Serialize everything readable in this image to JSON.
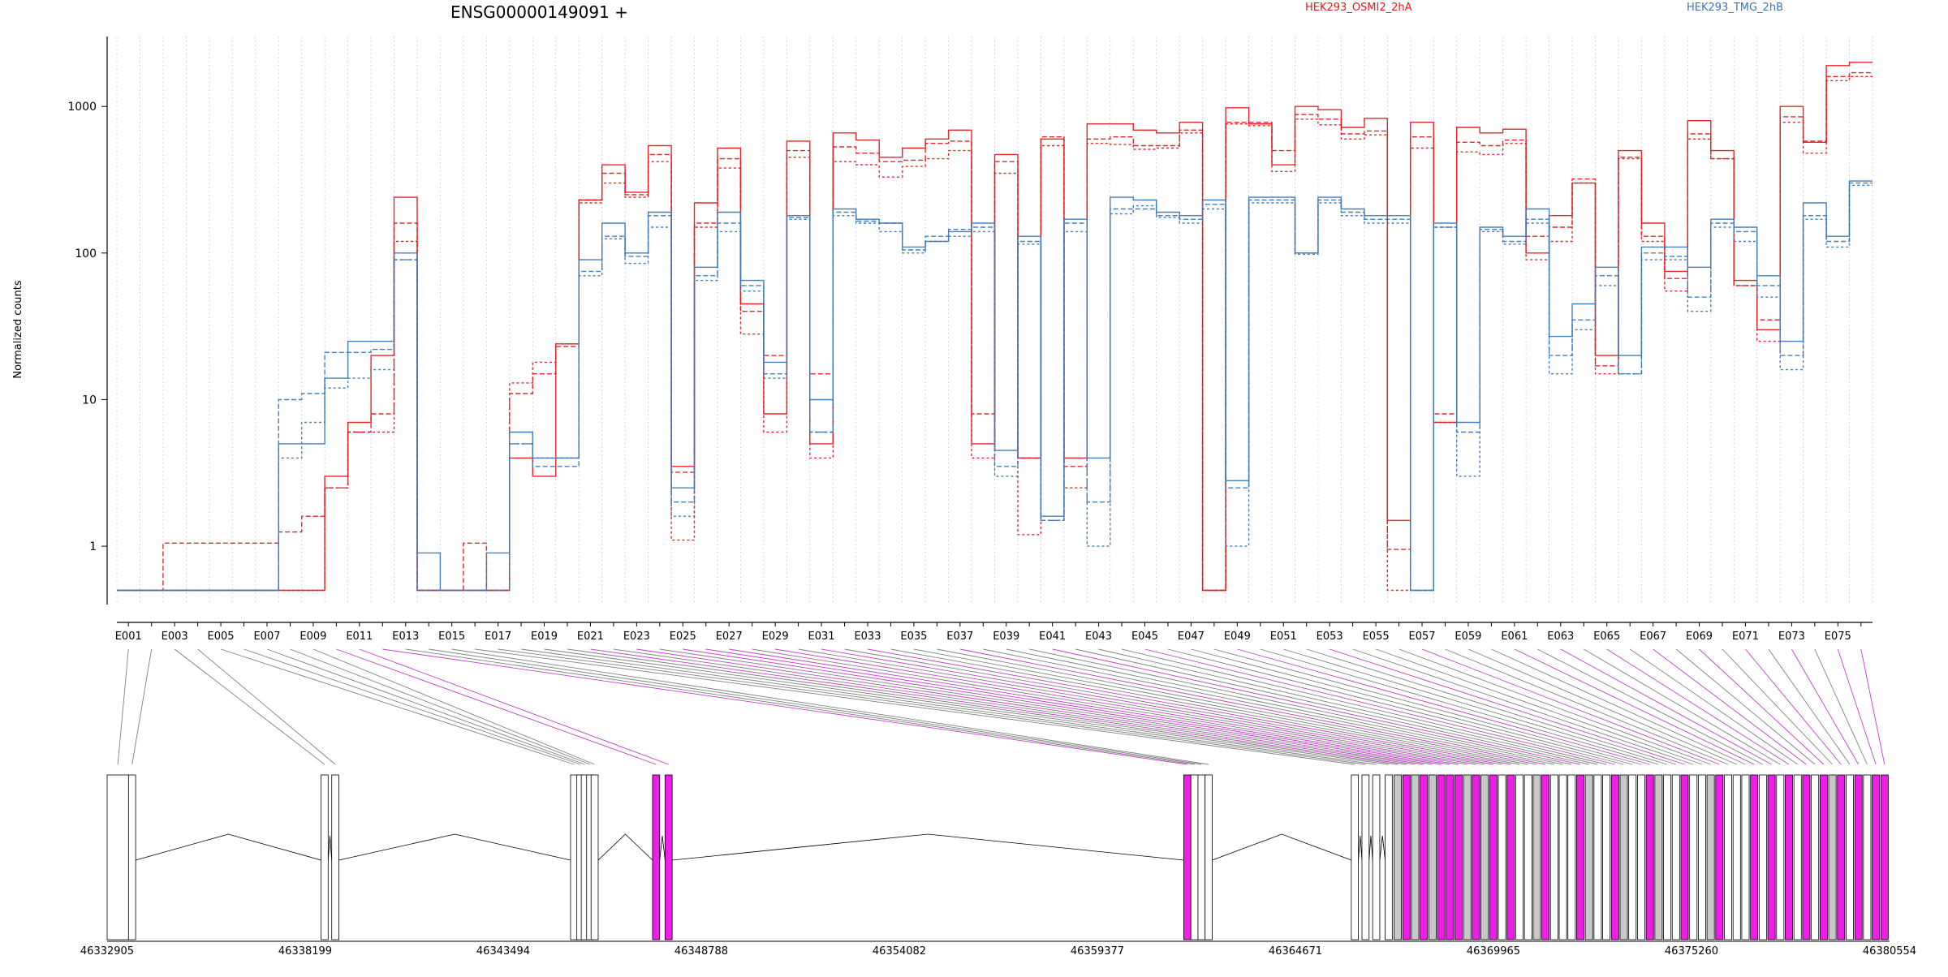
{
  "chart_data": {
    "type": "line",
    "title": "ENSG00000149091 +",
    "ylabel": "Normalized counts",
    "xlabel": "",
    "yscale": "log",
    "ylim": [
      0.4,
      3000
    ],
    "yticks": [
      1,
      10,
      100,
      1000
    ],
    "ytick_labels": [
      "1",
      "10",
      "100",
      "1000"
    ],
    "grid": "vertical dotted lines at each exon bin",
    "legend_position": "top",
    "x_label_every": 2,
    "exons": [
      "E001",
      "E002",
      "E003",
      "E004",
      "E005",
      "E006",
      "E007",
      "E008",
      "E009",
      "E010",
      "E011",
      "E012",
      "E013",
      "E014",
      "E015",
      "E016",
      "E017",
      "E018",
      "E019",
      "E020",
      "E021",
      "E022",
      "E023",
      "E024",
      "E025",
      "E026",
      "E027",
      "E028",
      "E029",
      "E030",
      "E031",
      "E032",
      "E033",
      "E034",
      "E035",
      "E036",
      "E037",
      "E038",
      "E039",
      "E040",
      "E041",
      "E042",
      "E043",
      "E044",
      "E045",
      "E046",
      "E047",
      "E048",
      "E049",
      "E050",
      "E051",
      "E052",
      "E053",
      "E054",
      "E055",
      "E056",
      "E057",
      "E058",
      "E059",
      "E060",
      "E061",
      "E062",
      "E063",
      "E064",
      "E065",
      "E066",
      "E067",
      "E068",
      "E069",
      "E070",
      "E071",
      "E072",
      "E073",
      "E074",
      "E075",
      "E076"
    ],
    "series": [
      {
        "name": "HEK293_OSMI2_2hA",
        "color": "#e31a1c",
        "values": [
          0.5,
          0.5,
          0.5,
          0.5,
          0.5,
          0.5,
          0.5,
          0.5,
          0.5,
          3,
          7,
          20,
          240,
          0.5,
          0.5,
          0.5,
          0.5,
          4,
          3,
          24,
          230,
          400,
          260,
          540,
          3.5,
          220,
          520,
          45,
          8,
          580,
          5,
          660,
          590,
          450,
          520,
          600,
          690,
          5,
          470,
          4,
          600,
          4,
          760,
          760,
          690,
          660,
          780,
          0.5,
          980,
          760,
          400,
          1000,
          950,
          720,
          830,
          1.5,
          780,
          7,
          720,
          660,
          700,
          100,
          180,
          300,
          20,
          500,
          160,
          75,
          800,
          500,
          65,
          30,
          1000,
          570,
          1900,
          2000
        ]
      },
      {
        "name": "",
        "color": "#e31a1c",
        "values": [
          0.5,
          0.5,
          1.05,
          1.05,
          1.05,
          1.05,
          1.05,
          1.25,
          1.6,
          2.5,
          6,
          8,
          160,
          0.5,
          0.5,
          1.05,
          0.5,
          11,
          15,
          23,
          230,
          350,
          250,
          470,
          3.2,
          160,
          440,
          40,
          20,
          500,
          15,
          530,
          480,
          420,
          430,
          560,
          580,
          8,
          420,
          4,
          620,
          3.5,
          600,
          620,
          540,
          540,
          690,
          0.5,
          780,
          780,
          500,
          880,
          820,
          650,
          680,
          0.95,
          620,
          8,
          570,
          540,
          590,
          130,
          150,
          320,
          17,
          450,
          130,
          67,
          650,
          440,
          60,
          35,
          850,
          580,
          1600,
          1700
        ]
      },
      {
        "name": "",
        "color": "#e31a1c",
        "values": [
          0.5,
          0.5,
          0.5,
          0.5,
          0.5,
          0.5,
          0.5,
          0.5,
          0.5,
          2.5,
          6,
          6,
          120,
          0.5,
          0.5,
          0.5,
          0.5,
          13,
          18,
          24,
          220,
          300,
          240,
          420,
          1.1,
          150,
          380,
          28,
          6,
          450,
          4,
          420,
          400,
          330,
          390,
          440,
          500,
          4,
          350,
          1.2,
          540,
          2.5,
          560,
          550,
          510,
          520,
          660,
          0.5,
          760,
          740,
          360,
          820,
          750,
          600,
          640,
          0.5,
          520,
          7,
          490,
          470,
          560,
          90,
          120,
          300,
          15,
          440,
          120,
          55,
          600,
          440,
          60,
          25,
          780,
          480,
          1500,
          1600
        ]
      },
      {
        "name": "HEK293_TMG_2hB",
        "color": "#3a78b5",
        "values": [
          0.5,
          0.5,
          0.5,
          0.5,
          0.5,
          0.5,
          0.5,
          5,
          5,
          14,
          25,
          25,
          100,
          0.9,
          0.5,
          0.5,
          0.9,
          6,
          4,
          4,
          90,
          160,
          100,
          190,
          2.5,
          80,
          190,
          65,
          18,
          180,
          10,
          200,
          170,
          160,
          110,
          120,
          140,
          160,
          4.5,
          130,
          1.6,
          170,
          4,
          240,
          230,
          190,
          180,
          230,
          2.8,
          240,
          240,
          100,
          240,
          200,
          180,
          180,
          0.5,
          160,
          7,
          150,
          130,
          200,
          27,
          45,
          80,
          20,
          110,
          110,
          80,
          170,
          150,
          70,
          25,
          220,
          130,
          310
        ]
      },
      {
        "name": "",
        "color": "#3a78b5",
        "values": [
          0.5,
          0.5,
          0.5,
          0.5,
          0.5,
          0.5,
          0.5,
          10,
          11,
          21,
          21,
          22,
          90,
          0.5,
          0.5,
          0.5,
          0.5,
          5,
          3.5,
          3.5,
          75,
          130,
          95,
          180,
          2,
          70,
          160,
          60,
          15,
          175,
          6,
          190,
          165,
          160,
          105,
          130,
          145,
          150,
          3.5,
          120,
          1.5,
          160,
          2,
          200,
          200,
          180,
          170,
          215,
          2.5,
          230,
          230,
          100,
          230,
          190,
          170,
          170,
          0.5,
          150,
          6,
          145,
          120,
          170,
          20,
          35,
          70,
          15,
          100,
          95,
          50,
          160,
          140,
          60,
          20,
          180,
          120,
          300
        ]
      },
      {
        "name": "",
        "color": "#3a78b5",
        "values": [
          0.5,
          0.5,
          0.5,
          0.5,
          0.5,
          0.5,
          0.5,
          4,
          7,
          12,
          14,
          16,
          90,
          0.5,
          0.5,
          0.5,
          0.5,
          5,
          4,
          4,
          70,
          125,
          85,
          150,
          1.6,
          65,
          140,
          55,
          14,
          170,
          6,
          180,
          160,
          140,
          100,
          120,
          130,
          140,
          3,
          115,
          1.5,
          140,
          1,
          185,
          210,
          175,
          160,
          200,
          1,
          220,
          220,
          98,
          220,
          180,
          160,
          160,
          0.5,
          150,
          3,
          140,
          115,
          160,
          15,
          30,
          60,
          15,
          90,
          90,
          40,
          150,
          120,
          50,
          16,
          170,
          110,
          290
        ]
      }
    ],
    "genomic_ticks": [
      "46332905",
      "46338199",
      "46343494",
      "46348788",
      "46354082",
      "46359377",
      "46364671",
      "46369965",
      "46375260",
      "46380554"
    ],
    "gene_model_colors": {
      "tested": "#ffffff",
      "not_tested": "#c8c8c8",
      "differential": "#ee1ee6",
      "connector_gray": "#808080",
      "connector_magenta": "#c040c8"
    }
  }
}
